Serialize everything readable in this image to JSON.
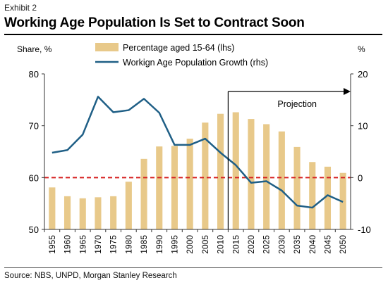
{
  "header": {
    "exhibit": "Exhibit 2",
    "title": "Working Age Population Is Set to Contract Soon"
  },
  "footer": {
    "source": "Source: NBS, UNPD, Morgan Stanley Research"
  },
  "colors": {
    "bar": "#e8c98a",
    "line": "#1f5f86",
    "zero_line": "#d62020",
    "axis": "#333333"
  },
  "chart_data": {
    "type": "bar",
    "categories": [
      "1955",
      "1960",
      "1965",
      "1970",
      "1975",
      "1980",
      "1985",
      "1990",
      "1995",
      "2000",
      "2005",
      "2010",
      "2015",
      "2020",
      "2025",
      "2030",
      "2035",
      "2040",
      "2045",
      "2050"
    ],
    "left_axis": {
      "label": "Share, %",
      "min": 50,
      "max": 80,
      "ticks": [
        50,
        60,
        70,
        80
      ]
    },
    "right_axis": {
      "label": "%",
      "min": -10,
      "max": 20,
      "ticks": [
        -10,
        0,
        10,
        20
      ]
    },
    "series": [
      {
        "name": "Percentage aged 15-64 (lhs)",
        "kind": "bar",
        "axis": "left",
        "values": [
          58.1,
          56.4,
          56.0,
          56.2,
          56.4,
          59.2,
          63.6,
          66.0,
          66.1,
          67.5,
          70.6,
          72.3,
          72.6,
          71.3,
          70.3,
          68.9,
          65.9,
          63.0,
          62.1,
          60.9
        ]
      },
      {
        "name": "Workign Age Population Growth (rhs)",
        "kind": "line",
        "axis": "right",
        "values": [
          4.8,
          5.3,
          8.3,
          15.6,
          12.6,
          13.0,
          15.2,
          12.5,
          6.3,
          6.3,
          7.5,
          4.8,
          2.4,
          -1.0,
          -0.7,
          -2.5,
          -5.4,
          -5.8,
          -3.4,
          -4.7
        ]
      }
    ],
    "reference_line": {
      "axis": "right",
      "value": 0,
      "style": "dashed"
    },
    "projection": {
      "label": "Projection",
      "start": "2015"
    },
    "grid": false,
    "legend_position": "top"
  }
}
